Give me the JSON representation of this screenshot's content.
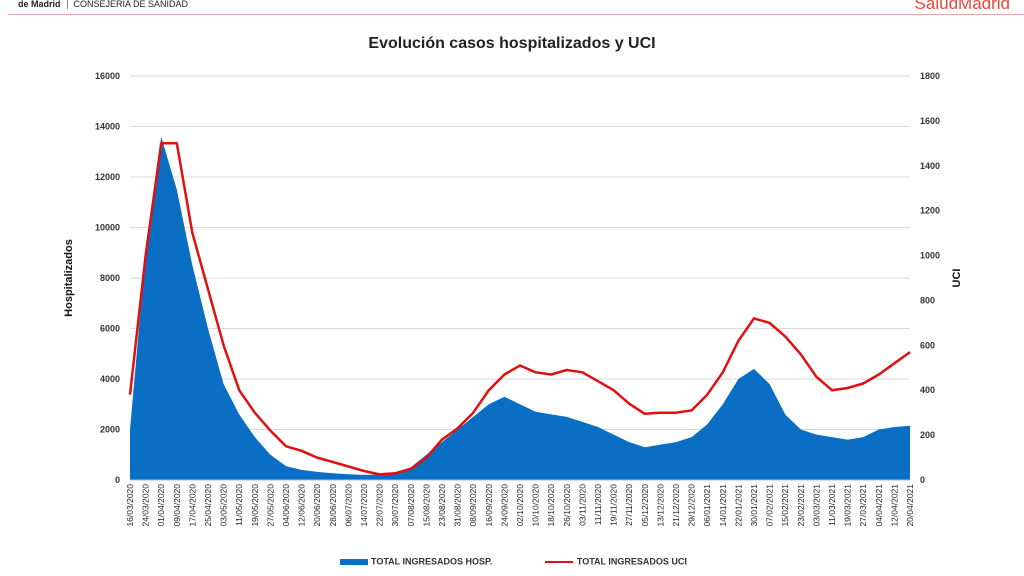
{
  "header": {
    "org": "de Madrid",
    "department": "CONSEJERÍA DE SANIDAD",
    "logo": "SaludMadrid"
  },
  "chart_data": {
    "type": "area+line",
    "title": "Evolución casos hospitalizados y UCI",
    "ylabel": "Hospitalizados",
    "y2label": "UCI",
    "ylim": [
      0,
      16000
    ],
    "y2lim": [
      0,
      1800
    ],
    "yticks": [
      0,
      2000,
      4000,
      6000,
      8000,
      10000,
      12000,
      14000,
      16000
    ],
    "y2ticks": [
      0,
      200,
      400,
      600,
      800,
      1000,
      1200,
      1400,
      1600,
      1800
    ],
    "grid": true,
    "legend_position": "bottom",
    "categories": [
      "16/03/2020",
      "24/03/2020",
      "01/04/2020",
      "09/04/2020",
      "17/04/2020",
      "25/04/2020",
      "03/05/2020",
      "11/05/2020",
      "19/05/2020",
      "27/05/2020",
      "04/06/2020",
      "12/06/2020",
      "20/06/2020",
      "28/06/2020",
      "06/07/2020",
      "14/07/2020",
      "22/07/2020",
      "30/07/2020",
      "07/08/2020",
      "15/08/2020",
      "23/08/2020",
      "31/08/2020",
      "08/09/2020",
      "16/09/2020",
      "24/09/2020",
      "02/10/2020",
      "10/10/2020",
      "18/10/2020",
      "26/10/2020",
      "03/11/2020",
      "11/11/2020",
      "19/11/2020",
      "27/11/2020",
      "05/12/2020",
      "13/12/2020",
      "21/12/2020",
      "29/12/2020",
      "06/01/2021",
      "14/01/2021",
      "22/01/2021",
      "30/01/2021",
      "07/02/2021",
      "15/02/2021",
      "23/02/2021",
      "03/03/2021",
      "11/03/2021",
      "19/03/2021",
      "27/03/2021",
      "04/04/2021",
      "12/04/2021",
      "20/04/2021"
    ],
    "series": [
      {
        "name": "TOTAL INGRESADOS HOSP.",
        "type": "area",
        "axis": "left",
        "color": "#0a6fc4",
        "values": [
          2000,
          9000,
          13600,
          11500,
          8500,
          6000,
          3800,
          2600,
          1700,
          1000,
          550,
          400,
          320,
          270,
          230,
          200,
          220,
          300,
          500,
          1000,
          1500,
          2000,
          2500,
          3000,
          3300,
          3000,
          2700,
          2600,
          2500,
          2300,
          2100,
          1800,
          1500,
          1300,
          1400,
          1500,
          1700,
          2200,
          3000,
          4000,
          4400,
          3800,
          2600,
          2000,
          1800,
          1700,
          1600,
          1700,
          2000,
          2100,
          2150
        ]
      },
      {
        "name": "TOTAL INGRESADOS UCI",
        "type": "line",
        "axis": "right",
        "color": "#e01010",
        "values": [
          380,
          1000,
          1500,
          1500,
          1100,
          850,
          600,
          400,
          300,
          220,
          150,
          130,
          100,
          80,
          60,
          40,
          25,
          30,
          50,
          100,
          180,
          230,
          300,
          400,
          470,
          510,
          480,
          470,
          490,
          480,
          440,
          400,
          340,
          295,
          300,
          300,
          310,
          380,
          480,
          620,
          720,
          700,
          640,
          560,
          460,
          400,
          410,
          430,
          470,
          520,
          570
        ]
      }
    ]
  }
}
